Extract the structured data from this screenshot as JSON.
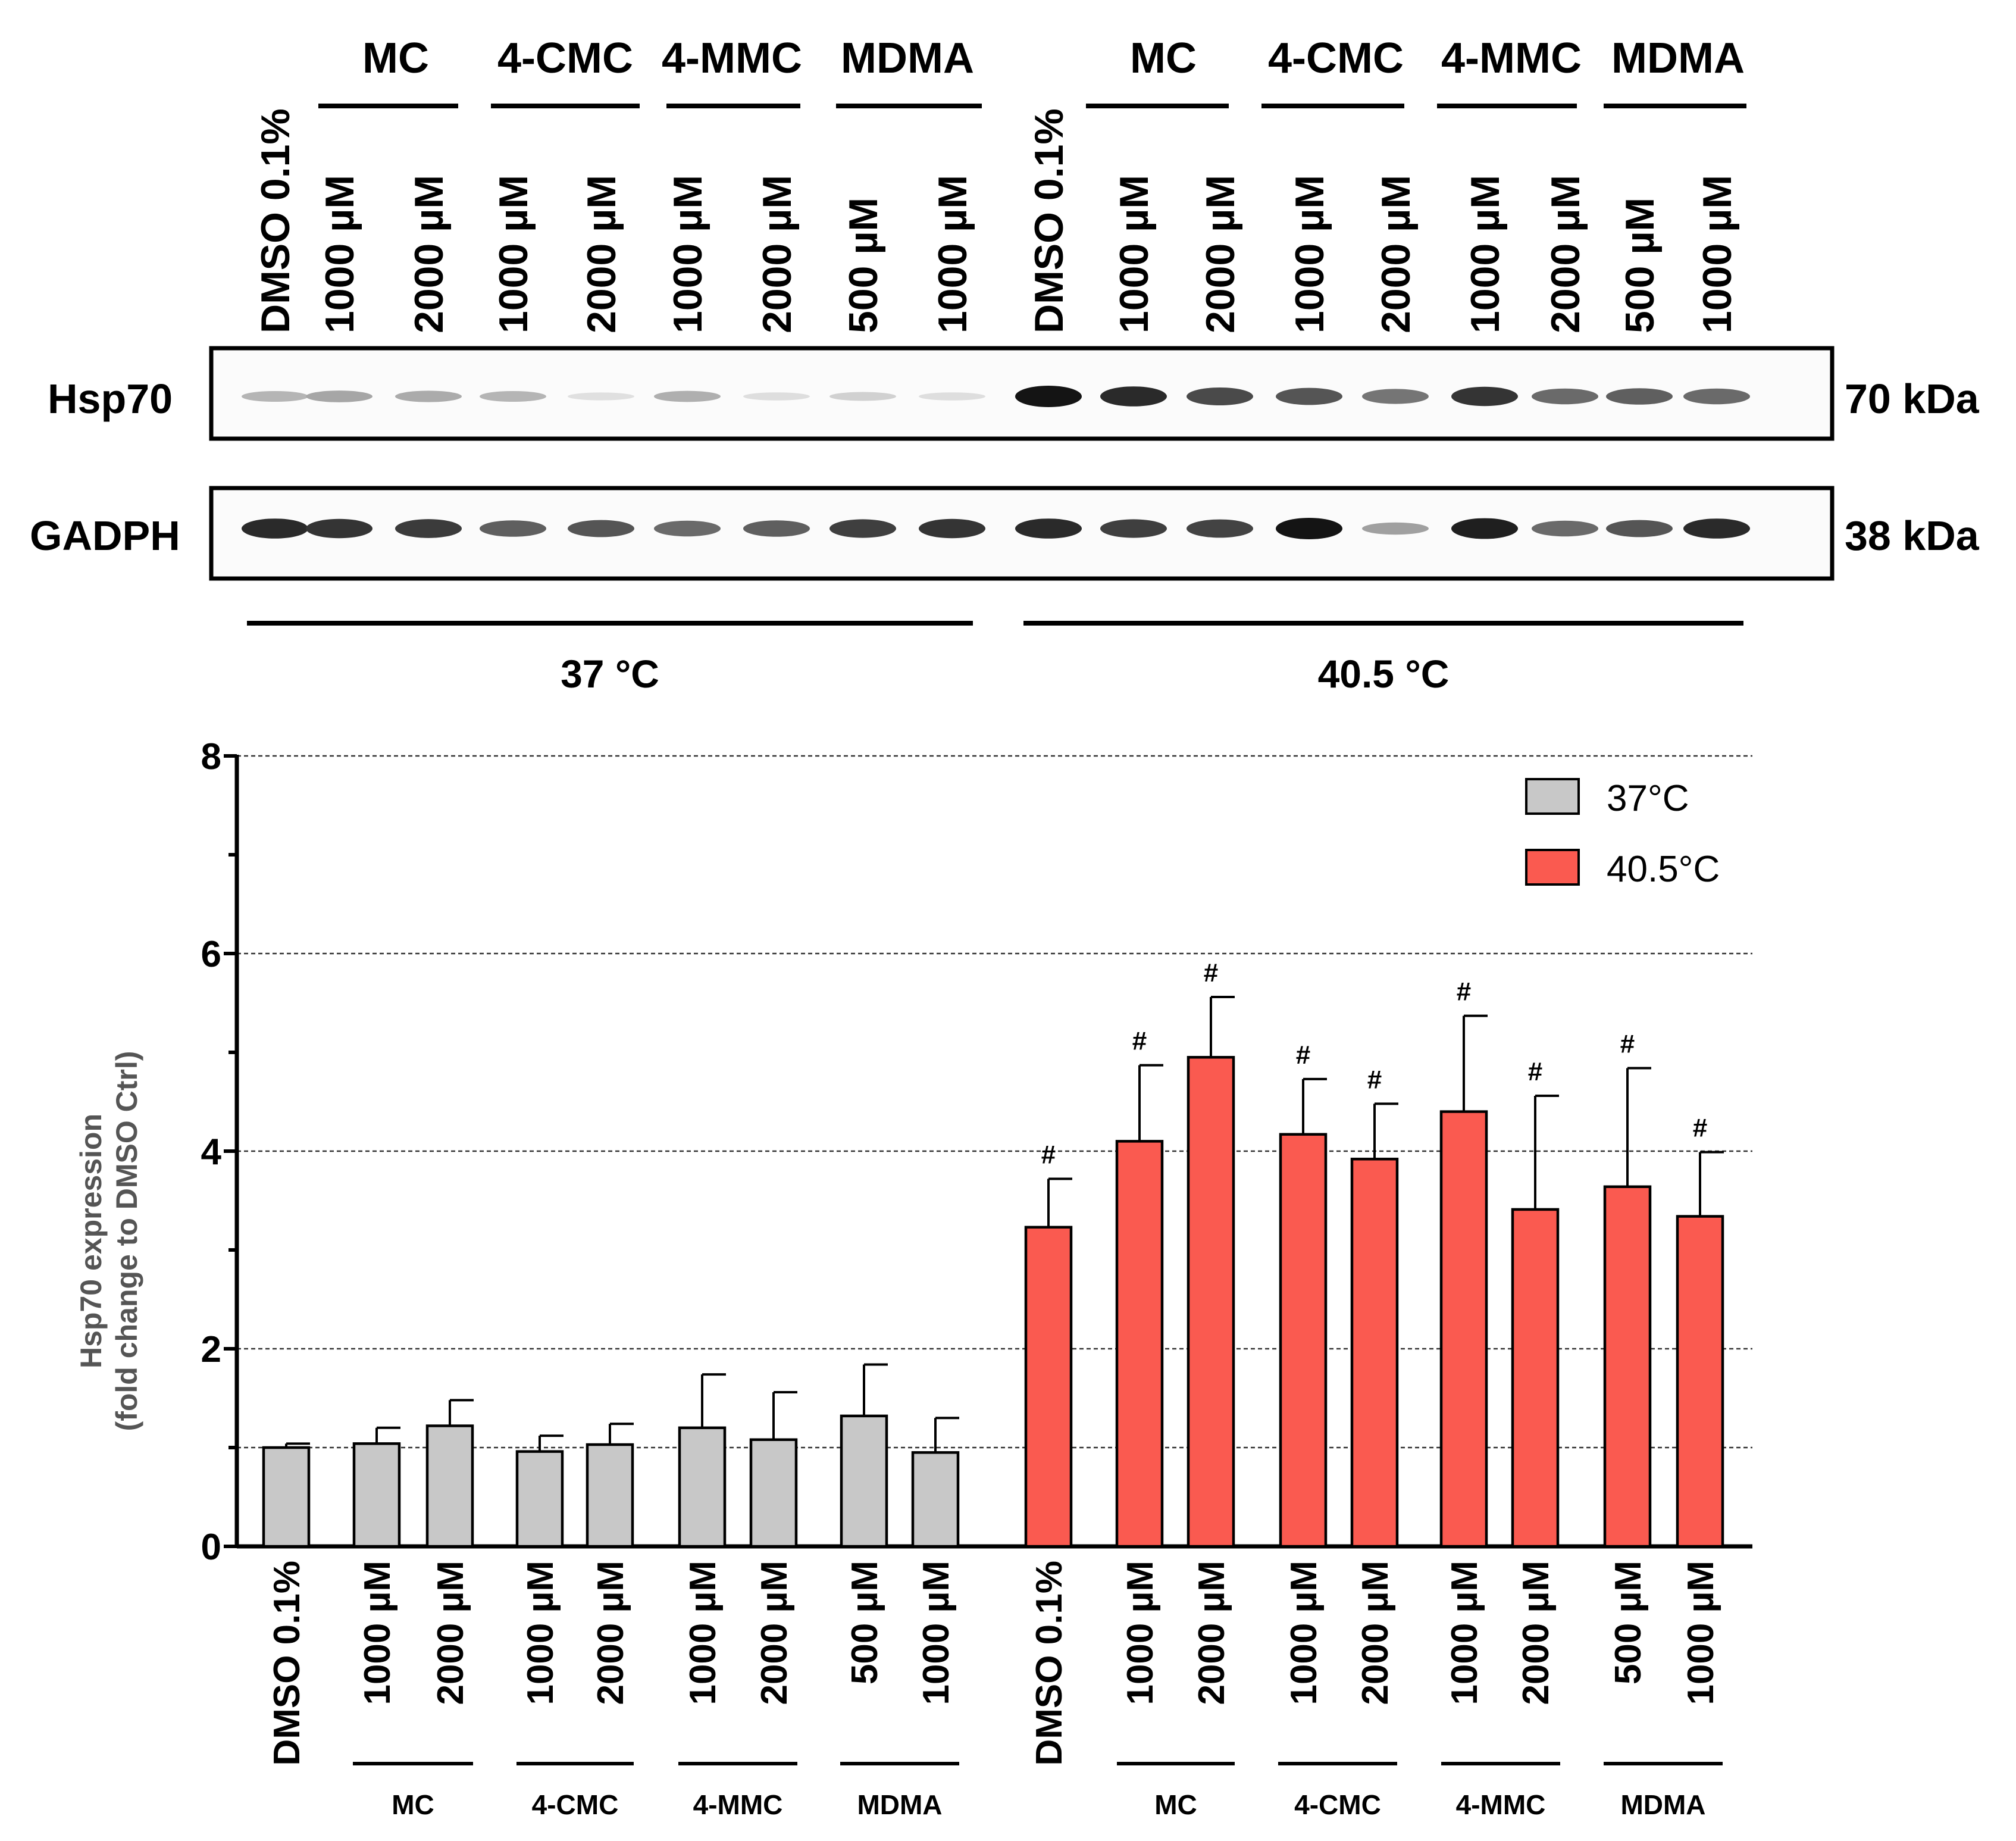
{
  "colors": {
    "control": "#c8c8c8",
    "heat": "#fa5a50",
    "axis": "#000000",
    "label_gray": "#555555"
  },
  "blot": {
    "top_groups": {
      "left": [
        "MC",
        "4-CMC",
        "4-MMC",
        "MDMA"
      ],
      "right": [
        "MC",
        "4-CMC",
        "4-MMC",
        "MDMA"
      ]
    },
    "lanes": [
      "DMSO 0.1%",
      "1000 µM",
      "2000 µM",
      "1000 µM",
      "2000 µM",
      "1000 µM",
      "2000 µM",
      "500 µM",
      "1000 µM",
      "DMSO 0.1%",
      "1000 µM",
      "2000 µM",
      "1000 µM",
      "2000 µM",
      "1000 µM",
      "2000 µM",
      "500 µM",
      "1000 µM"
    ],
    "rows": [
      {
        "protein": "Hsp70",
        "size": "70 kDa",
        "band_intensity": [
          0.25,
          0.32,
          0.3,
          0.25,
          0.05,
          0.28,
          0.06,
          0.12,
          0.06,
          1.0,
          0.9,
          0.75,
          0.7,
          0.55,
          0.85,
          0.6,
          0.65,
          0.6
        ]
      },
      {
        "protein": "GADPH",
        "size": "38 kDa",
        "band_intensity": [
          0.9,
          0.85,
          0.82,
          0.65,
          0.7,
          0.6,
          0.65,
          0.8,
          0.85,
          0.9,
          0.8,
          0.78,
          1.0,
          0.35,
          0.95,
          0.6,
          0.7,
          0.9
        ]
      }
    ],
    "temperatures": [
      "37 °C",
      "40.5 °C"
    ]
  },
  "chart_data": {
    "type": "bar",
    "ylabel_line1": "Hsp70 expression",
    "ylabel_line2": "(fold change to DMSO Ctrl)",
    "ylim": [
      0,
      8
    ],
    "yticks": [
      "0",
      "2",
      "4",
      "6",
      "8"
    ],
    "grid_values": [
      1,
      2,
      4,
      6,
      8
    ],
    "legend": [
      "37°C",
      "40.5°C"
    ],
    "legend_position": "top-right",
    "categories": [
      "DMSO 0.1%",
      "1000 µM",
      "2000 µM",
      "1000 µM",
      "2000 µM",
      "1000 µM",
      "2000 µM",
      "500 µM",
      "1000 µM"
    ],
    "group_labels": [
      "MC",
      "4-CMC",
      "4-MMC",
      "MDMA"
    ],
    "significance_marker": "#",
    "series": [
      {
        "name": "37°C",
        "values": [
          1.0,
          1.04,
          1.22,
          0.96,
          1.03,
          1.2,
          1.08,
          1.32,
          0.95
        ],
        "errors": [
          0.04,
          0.16,
          0.26,
          0.16,
          0.21,
          0.54,
          0.48,
          0.52,
          0.35
        ],
        "significant": [
          false,
          false,
          false,
          false,
          false,
          false,
          false,
          false,
          false
        ]
      },
      {
        "name": "40.5°C",
        "values": [
          3.23,
          4.1,
          4.95,
          4.17,
          3.92,
          4.4,
          3.41,
          3.64,
          3.34
        ],
        "errors": [
          0.49,
          0.77,
          0.61,
          0.56,
          0.56,
          0.97,
          1.15,
          1.2,
          0.65
        ],
        "significant": [
          true,
          true,
          true,
          true,
          true,
          true,
          true,
          true,
          true
        ]
      }
    ]
  }
}
